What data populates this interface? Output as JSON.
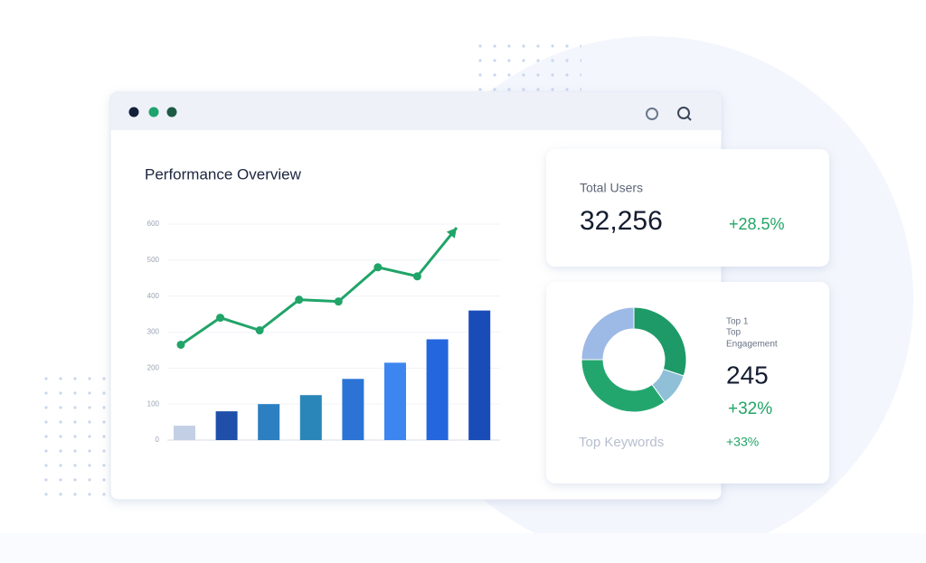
{
  "window": {
    "title": "Performance Overview"
  },
  "chart_data": {
    "type": "combo",
    "ylim": [
      0,
      600
    ],
    "yticks": [
      0,
      100,
      200,
      300,
      400,
      500,
      600
    ],
    "grid": true,
    "series": [
      {
        "type": "bar",
        "colors": [
          "#c3cfe4",
          "#1f4fa8",
          "#2c7fc0",
          "#2a86b8",
          "#2b74d6",
          "#3d86ef",
          "#2466dd",
          "#1a4cb8"
        ],
        "values": [
          40,
          80,
          100,
          125,
          170,
          215,
          280,
          360
        ]
      },
      {
        "type": "line",
        "color": "#20a468",
        "values": [
          265,
          340,
          305,
          390,
          385,
          480,
          455,
          590
        ]
      }
    ]
  },
  "total_users": {
    "label": "Total Users",
    "value": "32,256",
    "change": "+28.5%"
  },
  "keywords": {
    "labels": [
      "Top 1",
      "Top",
      "Engagement"
    ],
    "value": "245",
    "change": "+32%",
    "footer": "Top Keywords",
    "footer_change": "+33%",
    "donut": {
      "values": [
        30,
        10,
        35,
        25
      ],
      "colors": [
        "#1e9a68",
        "#8fc0d8",
        "#22a66e",
        "#9db9e6"
      ]
    }
  }
}
